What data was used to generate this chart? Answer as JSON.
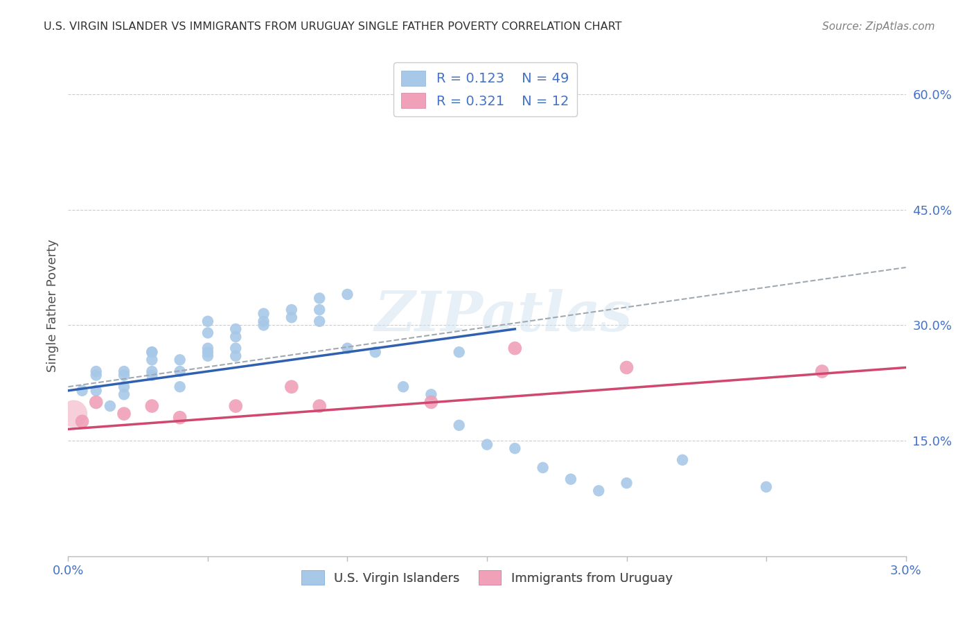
{
  "title": "U.S. VIRGIN ISLANDER VS IMMIGRANTS FROM URUGUAY SINGLE FATHER POVERTY CORRELATION CHART",
  "source": "Source: ZipAtlas.com",
  "ylabel": "Single Father Poverty",
  "yaxis_labels": [
    "15.0%",
    "30.0%",
    "45.0%",
    "60.0%"
  ],
  "yaxis_values": [
    0.15,
    0.3,
    0.45,
    0.6
  ],
  "xlim": [
    0.0,
    0.03
  ],
  "ylim": [
    0.0,
    0.65
  ],
  "legend_r1": "R = 0.123",
  "legend_n1": "N = 49",
  "legend_r2": "R = 0.321",
  "legend_n2": "N = 12",
  "blue_color": "#a8c8e8",
  "pink_color": "#f0a0b8",
  "blue_line_color": "#3060b0",
  "pink_line_color": "#d04870",
  "dashed_line_color": "#a0a8b0",
  "title_color": "#303030",
  "source_color": "#808080",
  "axis_label_color": "#4472c4",
  "legend_r_color": "#4472c4",
  "watermark": "ZIPatlas",
  "blue_x": [
    0.0005,
    0.001,
    0.001,
    0.001,
    0.0015,
    0.002,
    0.002,
    0.002,
    0.002,
    0.003,
    0.003,
    0.003,
    0.003,
    0.003,
    0.004,
    0.004,
    0.004,
    0.005,
    0.005,
    0.005,
    0.005,
    0.005,
    0.006,
    0.006,
    0.006,
    0.006,
    0.007,
    0.007,
    0.007,
    0.008,
    0.008,
    0.009,
    0.009,
    0.009,
    0.01,
    0.01,
    0.011,
    0.012,
    0.013,
    0.014,
    0.014,
    0.015,
    0.016,
    0.017,
    0.018,
    0.019,
    0.02,
    0.022,
    0.025
  ],
  "blue_y": [
    0.215,
    0.24,
    0.235,
    0.215,
    0.195,
    0.24,
    0.235,
    0.22,
    0.21,
    0.265,
    0.265,
    0.255,
    0.24,
    0.235,
    0.255,
    0.24,
    0.22,
    0.265,
    0.29,
    0.305,
    0.27,
    0.26,
    0.295,
    0.285,
    0.27,
    0.26,
    0.305,
    0.315,
    0.3,
    0.31,
    0.32,
    0.335,
    0.32,
    0.305,
    0.34,
    0.27,
    0.265,
    0.22,
    0.21,
    0.265,
    0.17,
    0.145,
    0.14,
    0.115,
    0.1,
    0.085,
    0.095,
    0.125,
    0.09
  ],
  "pink_x": [
    0.0005,
    0.001,
    0.002,
    0.003,
    0.004,
    0.006,
    0.008,
    0.009,
    0.013,
    0.016,
    0.02,
    0.027
  ],
  "pink_y": [
    0.175,
    0.2,
    0.185,
    0.195,
    0.18,
    0.195,
    0.22,
    0.195,
    0.2,
    0.27,
    0.245,
    0.24
  ],
  "blue_trendline_x": [
    0.0,
    0.016
  ],
  "blue_trendline_y": [
    0.215,
    0.295
  ],
  "pink_trendline_x": [
    0.0,
    0.03
  ],
  "pink_trendline_y": [
    0.165,
    0.245
  ],
  "dashed_line_x": [
    0.0,
    0.03
  ],
  "dashed_line_y": [
    0.22,
    0.375
  ],
  "xtick_positions": [
    0.0,
    0.005,
    0.01,
    0.015,
    0.02,
    0.025,
    0.03
  ],
  "xtick_edge_labels": {
    "0": "0.0%",
    "6": "3.0%"
  }
}
